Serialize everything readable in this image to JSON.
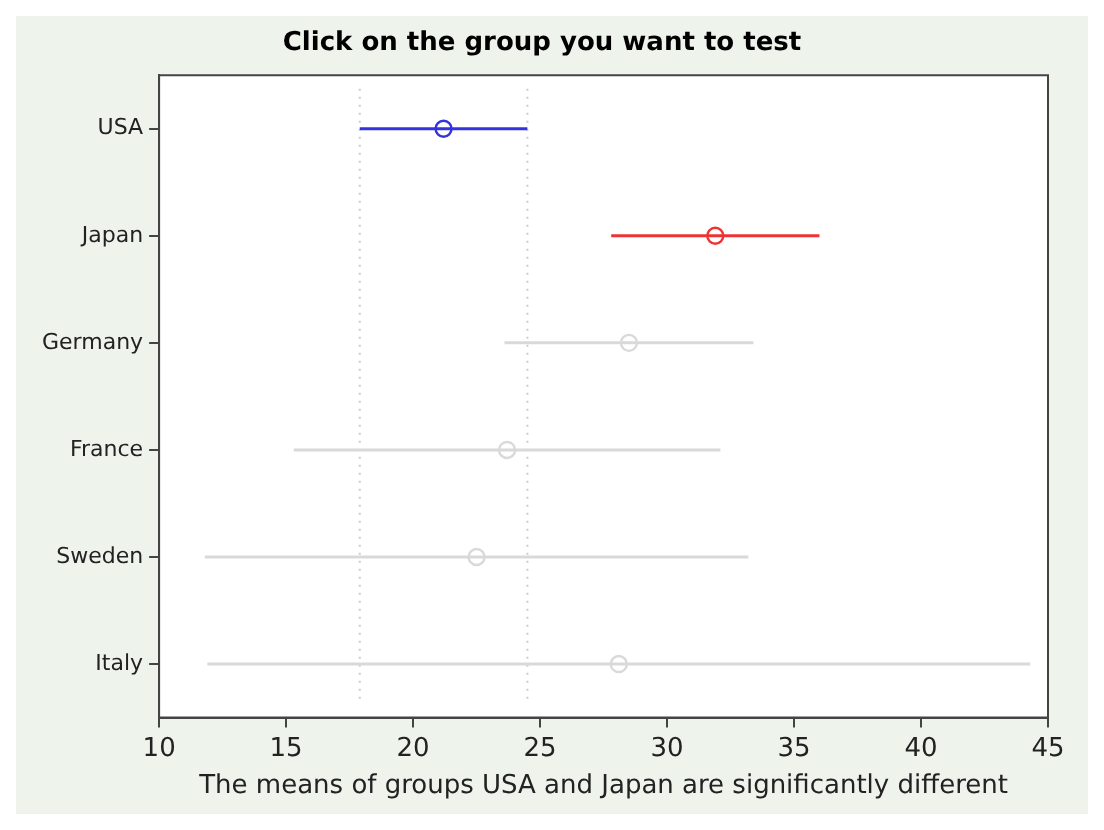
{
  "chart_data": {
    "type": "scatter",
    "orientation": "horizontal",
    "title": "Click on the group you want to test",
    "xlabel": "The means of groups USA and Japan are significantly different",
    "categories": [
      "USA",
      "Japan",
      "Germany",
      "France",
      "Sweden",
      "Italy"
    ],
    "values": [
      21.2,
      31.9,
      28.5,
      23.7,
      22.5,
      28.1
    ],
    "errors": [
      3.3,
      4.1,
      4.9,
      8.4,
      10.7,
      16.2
    ],
    "colors": [
      "#3333dd",
      "#ee3333",
      "#d9d9d9",
      "#d9d9d9",
      "#d9d9d9",
      "#d9d9d9"
    ],
    "xlim": [
      10,
      45
    ],
    "xticks": [
      10,
      15,
      20,
      25,
      30,
      35,
      40,
      45
    ],
    "ref_lines": [
      {
        "axis": "x",
        "value": 17.9,
        "color": "#cccccc",
        "line_style": "dotted"
      },
      {
        "axis": "x",
        "value": 24.5,
        "color": "#cccccc",
        "line_style": "dotted"
      }
    ],
    "marker": "circle",
    "legend": false
  }
}
